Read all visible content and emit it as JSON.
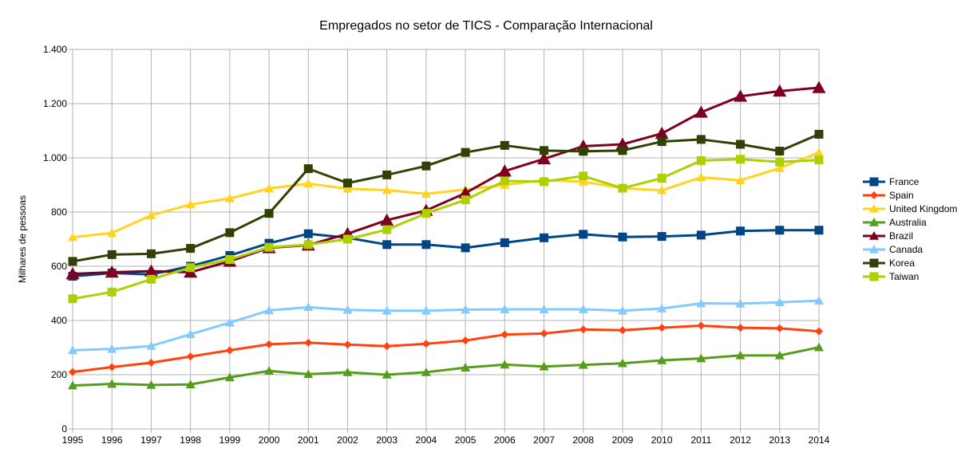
{
  "chart_data": {
    "type": "line",
    "title": "Empregados no setor de TICS - Comparação Internacional",
    "ylabel": "Milhares de pessoas",
    "xlabel": "",
    "ylim": [
      0,
      1400
    ],
    "yticks": [
      0,
      200,
      400,
      600,
      800,
      1000,
      1200,
      1400
    ],
    "ytick_labels": [
      "0",
      "200",
      "400",
      "600",
      "800",
      "1.000",
      "1.200",
      "1.400"
    ],
    "grid": true,
    "legend_position": "right",
    "x": [
      "1995",
      "1996",
      "1997",
      "1998",
      "1999",
      "2000",
      "2001",
      "2002",
      "2003",
      "2004",
      "2005",
      "2006",
      "2007",
      "2008",
      "2009",
      "2010",
      "2011",
      "2012",
      "2013",
      "2014"
    ],
    "series": [
      {
        "name": "France",
        "color": "#004586",
        "marker": "square",
        "values": [
          563,
          575,
          570,
          600,
          640,
          685,
          720,
          705,
          680,
          680,
          668,
          687,
          705,
          718,
          708,
          710,
          715,
          730,
          733,
          733
        ]
      },
      {
        "name": "Spain",
        "color": "#ff420e",
        "marker": "diamond",
        "values": [
          210,
          228,
          244,
          267,
          290,
          312,
          318,
          311,
          305,
          314,
          326,
          348,
          352,
          367,
          364,
          373,
          381,
          373,
          371,
          360
        ]
      },
      {
        "name": "United Kingdom",
        "color": "#ffd320",
        "marker": "triangle",
        "values": [
          707,
          723,
          788,
          828,
          850,
          887,
          905,
          886,
          881,
          867,
          883,
          900,
          918,
          912,
          888,
          880,
          928,
          917,
          962,
          1020
        ]
      },
      {
        "name": "Australia",
        "color": "#579d1c",
        "marker": "triangle",
        "values": [
          160,
          166,
          162,
          164,
          190,
          214,
          202,
          209,
          200,
          209,
          226,
          237,
          230,
          236,
          242,
          253,
          260,
          271,
          271,
          301
        ]
      },
      {
        "name": "Brazil",
        "color": "#7e0021",
        "marker": "big-triangle",
        "values": [
          572,
          578,
          582,
          578,
          618,
          668,
          678,
          720,
          770,
          806,
          870,
          951,
          996,
          1043,
          1050,
          1090,
          1168,
          1227,
          1246,
          1259
        ]
      },
      {
        "name": "Canada",
        "color": "#83caff",
        "marker": "triangle",
        "values": [
          290,
          295,
          306,
          349,
          392,
          437,
          449,
          439,
          436,
          436,
          440,
          441,
          441,
          441,
          436,
          444,
          463,
          462,
          467,
          473
        ]
      },
      {
        "name": "Korea",
        "color": "#314004",
        "marker": "square",
        "values": [
          618,
          643,
          646,
          666,
          724,
          795,
          960,
          907,
          937,
          970,
          1020,
          1046,
          1027,
          1024,
          1027,
          1060,
          1068,
          1050,
          1025,
          1087
        ]
      },
      {
        "name": "Taiwan",
        "color": "#aecf00",
        "marker": "square",
        "values": [
          480,
          505,
          552,
          595,
          625,
          670,
          680,
          700,
          735,
          795,
          845,
          915,
          912,
          933,
          888,
          925,
          990,
          995,
          985,
          992
        ]
      }
    ]
  }
}
